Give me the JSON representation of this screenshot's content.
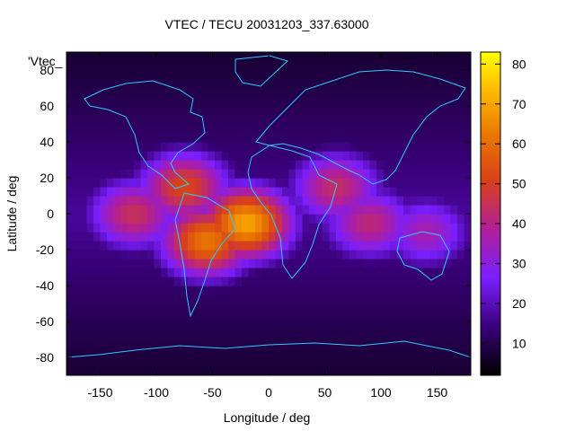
{
  "chart_data": {
    "type": "heatmap",
    "title": "VTEC / TECU 20031203_337.63000",
    "xlabel": "Longitude / deg",
    "ylabel": "Latitude / deg",
    "legend_entry": "'Vtec_",
    "xlim": [
      -180,
      180
    ],
    "ylim": [
      -90,
      90
    ],
    "xticks": [
      -150,
      -100,
      -50,
      0,
      50,
      100,
      150
    ],
    "yticks": [
      80,
      60,
      40,
      20,
      0,
      -20,
      -40,
      -60,
      -80
    ],
    "colorbar": {
      "range": [
        2,
        83
      ],
      "ticks": [
        10,
        20,
        30,
        40,
        50,
        60,
        70,
        80
      ]
    },
    "field_peaks": [
      {
        "lon": -20,
        "lat": -5,
        "value": 70
      },
      {
        "lon": -55,
        "lat": -15,
        "value": 62
      },
      {
        "lon": -75,
        "lat": 15,
        "value": 52
      },
      {
        "lon": -120,
        "lat": 0,
        "value": 45
      },
      {
        "lon": 60,
        "lat": 15,
        "value": 44
      },
      {
        "lon": 90,
        "lat": -5,
        "value": 42
      },
      {
        "lon": 140,
        "lat": -10,
        "value": 36
      }
    ],
    "background_value": 17,
    "grid": false,
    "colors": {
      "coastline": "#33c8ff",
      "frame": "#000000"
    }
  }
}
